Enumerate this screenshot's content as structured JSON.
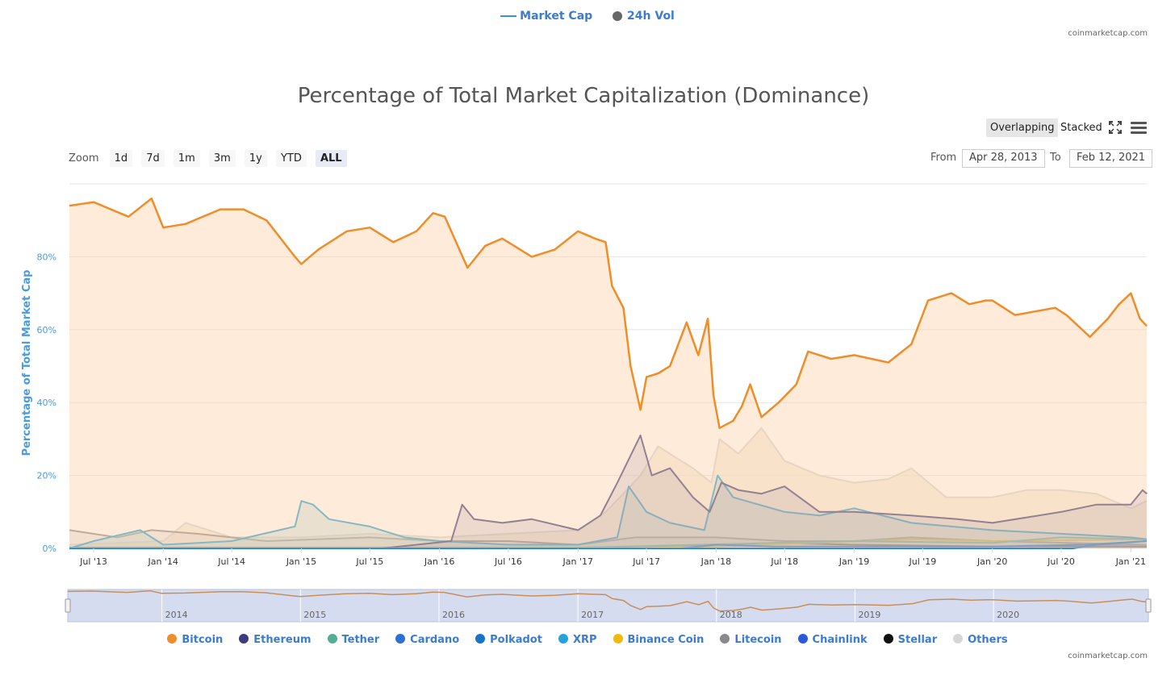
{
  "top_legend": {
    "market_cap": "Market Cap",
    "vol": "24h Vol"
  },
  "credit_top": "coinmarketcap.com",
  "credit_bottom": "coinmarketcap.com",
  "title": "Percentage of Total Market Capitalization (Dominance)",
  "view_buttons": {
    "overlapping": "Overlapping",
    "stacked": "Stacked"
  },
  "zoom": {
    "label": "Zoom",
    "buttons": [
      "1d",
      "7d",
      "1m",
      "3m",
      "1y",
      "YTD",
      "ALL"
    ],
    "selected": "ALL"
  },
  "range": {
    "from_label": "From",
    "from": "Apr 28, 2013",
    "to_label": "To",
    "to": "Feb 12, 2021"
  },
  "chart_data": {
    "type": "area",
    "title": "Percentage of Total Market Capitalization (Dominance)",
    "ylabel": "Percentage of Total Market Cap",
    "ylim": [
      0,
      100
    ],
    "yticks": [
      "0%",
      "20%",
      "40%",
      "60%",
      "80%"
    ],
    "x_start": "2013-04-28",
    "x_end": "2021-02-12",
    "xticks": [
      {
        "date": "2013-07-01",
        "label": "Jul '13"
      },
      {
        "date": "2014-01-01",
        "label": "Jan '14"
      },
      {
        "date": "2014-07-01",
        "label": "Jul '14"
      },
      {
        "date": "2015-01-01",
        "label": "Jan '15"
      },
      {
        "date": "2015-07-01",
        "label": "Jul '15"
      },
      {
        "date": "2016-01-01",
        "label": "Jan '16"
      },
      {
        "date": "2016-07-01",
        "label": "Jul '16"
      },
      {
        "date": "2017-01-01",
        "label": "Jan '17"
      },
      {
        "date": "2017-07-01",
        "label": "Jul '17"
      },
      {
        "date": "2018-01-01",
        "label": "Jan '18"
      },
      {
        "date": "2018-07-01",
        "label": "Jul '18"
      },
      {
        "date": "2019-01-01",
        "label": "Jan '19"
      },
      {
        "date": "2019-07-01",
        "label": "Jul '19"
      },
      {
        "date": "2020-01-01",
        "label": "Jan '20"
      },
      {
        "date": "2020-07-01",
        "label": "Jul '20"
      },
      {
        "date": "2021-01-01",
        "label": "Jan '21"
      }
    ],
    "navigator_years": [
      {
        "date": "2014-01-01",
        "label": "2014"
      },
      {
        "date": "2015-01-01",
        "label": "2015"
      },
      {
        "date": "2016-01-01",
        "label": "2016"
      },
      {
        "date": "2017-01-01",
        "label": "2017"
      },
      {
        "date": "2018-01-01",
        "label": "2018"
      },
      {
        "date": "2019-01-01",
        "label": "2019"
      },
      {
        "date": "2020-01-01",
        "label": "2020"
      }
    ],
    "series": [
      {
        "name": "Others",
        "color": "#d6d6d6",
        "fill": "rgba(235,225,205,0.55)",
        "points": [
          [
            "2013-04-28",
            1
          ],
          [
            "2014-01-01",
            2
          ],
          [
            "2014-03-01",
            7
          ],
          [
            "2014-07-01",
            3
          ],
          [
            "2015-01-01",
            3
          ],
          [
            "2015-07-01",
            4
          ],
          [
            "2016-01-01",
            3
          ],
          [
            "2016-07-01",
            4
          ],
          [
            "2017-01-01",
            5
          ],
          [
            "2017-03-15",
            10
          ],
          [
            "2017-05-01",
            15
          ],
          [
            "2017-06-15",
            20
          ],
          [
            "2017-08-01",
            28
          ],
          [
            "2017-09-15",
            25
          ],
          [
            "2017-11-01",
            22
          ],
          [
            "2017-12-20",
            18
          ],
          [
            "2018-01-10",
            30
          ],
          [
            "2018-03-01",
            26
          ],
          [
            "2018-05-01",
            33
          ],
          [
            "2018-07-01",
            24
          ],
          [
            "2018-10-01",
            20
          ],
          [
            "2019-01-01",
            18
          ],
          [
            "2019-04-01",
            19
          ],
          [
            "2019-06-01",
            22
          ],
          [
            "2019-09-01",
            14
          ],
          [
            "2020-01-01",
            14
          ],
          [
            "2020-04-01",
            16
          ],
          [
            "2020-07-01",
            16
          ],
          [
            "2020-10-01",
            15
          ],
          [
            "2021-01-01",
            11
          ],
          [
            "2021-02-12",
            13
          ]
        ]
      },
      {
        "name": "Stellar",
        "color": "#111111",
        "fill": "none",
        "points": [
          [
            "2013-04-28",
            0.2
          ],
          [
            "2017-01-01",
            0.2
          ],
          [
            "2017-06-01",
            0.5
          ],
          [
            "2018-01-01",
            1
          ],
          [
            "2018-06-01",
            1.5
          ],
          [
            "2019-01-01",
            1
          ],
          [
            "2020-01-01",
            0.5
          ],
          [
            "2021-02-12",
            0.5
          ]
        ]
      },
      {
        "name": "Chainlink",
        "color": "#2a5ada",
        "fill": "none",
        "points": [
          [
            "2013-04-28",
            0
          ],
          [
            "2019-06-01",
            0
          ],
          [
            "2020-01-01",
            0.3
          ],
          [
            "2020-08-01",
            1
          ],
          [
            "2021-02-12",
            1
          ]
        ]
      },
      {
        "name": "Litecoin",
        "color": "#8a8a8a",
        "fill": "rgba(200,200,200,0.35)",
        "points": [
          [
            "2013-04-28",
            5
          ],
          [
            "2013-09-01",
            3
          ],
          [
            "2013-12-01",
            5
          ],
          [
            "2014-04-01",
            4
          ],
          [
            "2014-10-01",
            2
          ],
          [
            "2015-07-01",
            3
          ],
          [
            "2016-01-01",
            2
          ],
          [
            "2016-07-01",
            2
          ],
          [
            "2017-01-01",
            1
          ],
          [
            "2017-06-01",
            3
          ],
          [
            "2018-01-01",
            3
          ],
          [
            "2018-07-01",
            2
          ],
          [
            "2019-01-01",
            2
          ],
          [
            "2019-06-01",
            3
          ],
          [
            "2020-01-01",
            2
          ],
          [
            "2021-02-12",
            1
          ]
        ]
      },
      {
        "name": "Binance Coin",
        "color": "#f0b90b",
        "fill": "none",
        "points": [
          [
            "2013-04-28",
            0
          ],
          [
            "2017-07-01",
            0
          ],
          [
            "2018-01-01",
            0.5
          ],
          [
            "2019-06-01",
            2.5
          ],
          [
            "2020-01-01",
            2
          ],
          [
            "2021-02-12",
            2.5
          ]
        ]
      },
      {
        "name": "Tether",
        "color": "#50af95",
        "fill": "none",
        "points": [
          [
            "2013-04-28",
            0
          ],
          [
            "2015-03-01",
            0
          ],
          [
            "2017-01-01",
            0.2
          ],
          [
            "2018-06-01",
            1.5
          ],
          [
            "2019-01-01",
            2
          ],
          [
            "2020-01-01",
            1.5
          ],
          [
            "2020-07-01",
            3
          ],
          [
            "2021-02-12",
            2.5
          ]
        ]
      },
      {
        "name": "XRP",
        "color": "#23a3d8",
        "fill": "rgba(150,200,210,0.35)",
        "points": [
          [
            "2013-04-28",
            0
          ],
          [
            "2013-07-01",
            2
          ],
          [
            "2013-11-01",
            5
          ],
          [
            "2014-01-01",
            1
          ],
          [
            "2014-07-01",
            2
          ],
          [
            "2014-12-15",
            6
          ],
          [
            "2015-01-01",
            13
          ],
          [
            "2015-02-01",
            12
          ],
          [
            "2015-03-15",
            8
          ],
          [
            "2015-07-01",
            6
          ],
          [
            "2015-10-01",
            3
          ],
          [
            "2016-01-01",
            2
          ],
          [
            "2016-07-01",
            1
          ],
          [
            "2017-01-01",
            1
          ],
          [
            "2017-04-15",
            3
          ],
          [
            "2017-05-15",
            17
          ],
          [
            "2017-07-01",
            10
          ],
          [
            "2017-09-01",
            7
          ],
          [
            "2017-12-01",
            5
          ],
          [
            "2018-01-05",
            20
          ],
          [
            "2018-02-15",
            14
          ],
          [
            "2018-07-01",
            10
          ],
          [
            "2018-10-01",
            9
          ],
          [
            "2019-01-01",
            11
          ],
          [
            "2019-06-01",
            7
          ],
          [
            "2020-01-01",
            5
          ],
          [
            "2020-07-01",
            4
          ],
          [
            "2021-01-01",
            3
          ],
          [
            "2021-02-12",
            2.5
          ]
        ]
      },
      {
        "name": "Ethereum",
        "color": "#3c3c7d",
        "fill": "rgba(90,80,140,0.18)",
        "points": [
          [
            "2013-04-28",
            0
          ],
          [
            "2015-08-01",
            0
          ],
          [
            "2016-02-01",
            2
          ],
          [
            "2016-03-01",
            12
          ],
          [
            "2016-04-01",
            8
          ],
          [
            "2016-06-15",
            7
          ],
          [
            "2016-09-01",
            8
          ],
          [
            "2017-01-01",
            5
          ],
          [
            "2017-03-01",
            9
          ],
          [
            "2017-04-15",
            18
          ],
          [
            "2017-06-15",
            31
          ],
          [
            "2017-07-15",
            20
          ],
          [
            "2017-09-01",
            22
          ],
          [
            "2017-11-01",
            14
          ],
          [
            "2017-12-15",
            10
          ],
          [
            "2018-01-15",
            18
          ],
          [
            "2018-03-01",
            16
          ],
          [
            "2018-05-01",
            15
          ],
          [
            "2018-07-01",
            17
          ],
          [
            "2018-10-01",
            10
          ],
          [
            "2019-01-01",
            10
          ],
          [
            "2019-06-01",
            9
          ],
          [
            "2019-10-01",
            8
          ],
          [
            "2020-01-01",
            7
          ],
          [
            "2020-07-01",
            10
          ],
          [
            "2020-10-01",
            12
          ],
          [
            "2021-01-01",
            12
          ],
          [
            "2021-02-01",
            16
          ],
          [
            "2021-02-12",
            15
          ]
        ]
      },
      {
        "name": "Cardano",
        "color": "#2c6fd6",
        "fill": "none",
        "points": [
          [
            "2013-04-28",
            0
          ],
          [
            "2017-10-01",
            0
          ],
          [
            "2018-01-01",
            1
          ],
          [
            "2018-06-01",
            0.5
          ],
          [
            "2020-01-01",
            0.5
          ],
          [
            "2020-09-01",
            1
          ],
          [
            "2021-02-12",
            2
          ]
        ]
      },
      {
        "name": "Polkadot",
        "color": "#1576c8",
        "fill": "none",
        "points": [
          [
            "2013-04-28",
            0
          ],
          [
            "2020-08-01",
            0
          ],
          [
            "2020-10-01",
            1
          ],
          [
            "2021-02-12",
            2
          ]
        ]
      },
      {
        "name": "Bitcoin",
        "color": "#ef8e29",
        "fill": "rgba(252,210,170,0.45)",
        "points": [
          [
            "2013-04-28",
            94
          ],
          [
            "2013-07-01",
            95
          ],
          [
            "2013-10-01",
            91
          ],
          [
            "2013-12-01",
            96
          ],
          [
            "2014-01-01",
            88
          ],
          [
            "2014-03-01",
            89
          ],
          [
            "2014-06-01",
            93
          ],
          [
            "2014-08-01",
            93
          ],
          [
            "2014-10-01",
            90
          ],
          [
            "2014-12-15",
            80
          ],
          [
            "2015-01-01",
            78
          ],
          [
            "2015-02-15",
            82
          ],
          [
            "2015-05-01",
            87
          ],
          [
            "2015-07-01",
            88
          ],
          [
            "2015-09-01",
            84
          ],
          [
            "2015-11-01",
            87
          ],
          [
            "2015-12-15",
            92
          ],
          [
            "2016-01-15",
            91
          ],
          [
            "2016-03-15",
            77
          ],
          [
            "2016-05-01",
            83
          ],
          [
            "2016-06-15",
            85
          ],
          [
            "2016-09-01",
            80
          ],
          [
            "2016-11-01",
            82
          ],
          [
            "2017-01-01",
            87
          ],
          [
            "2017-02-15",
            85
          ],
          [
            "2017-03-15",
            84
          ],
          [
            "2017-04-01",
            72
          ],
          [
            "2017-05-01",
            66
          ],
          [
            "2017-05-20",
            50
          ],
          [
            "2017-06-15",
            38
          ],
          [
            "2017-07-01",
            47
          ],
          [
            "2017-08-01",
            48
          ],
          [
            "2017-09-01",
            50
          ],
          [
            "2017-10-15",
            62
          ],
          [
            "2017-11-15",
            53
          ],
          [
            "2017-12-10",
            63
          ],
          [
            "2017-12-25",
            42
          ],
          [
            "2018-01-10",
            33
          ],
          [
            "2018-02-15",
            35
          ],
          [
            "2018-03-10",
            39
          ],
          [
            "2018-04-01",
            45
          ],
          [
            "2018-05-01",
            36
          ],
          [
            "2018-06-15",
            40
          ],
          [
            "2018-08-01",
            45
          ],
          [
            "2018-09-01",
            54
          ],
          [
            "2018-11-01",
            52
          ],
          [
            "2019-01-01",
            53
          ],
          [
            "2019-04-01",
            51
          ],
          [
            "2019-06-01",
            56
          ],
          [
            "2019-07-15",
            68
          ],
          [
            "2019-09-15",
            70
          ],
          [
            "2019-11-01",
            67
          ],
          [
            "2019-12-15",
            68
          ],
          [
            "2020-01-01",
            68
          ],
          [
            "2020-03-01",
            64
          ],
          [
            "2020-06-15",
            66
          ],
          [
            "2020-07-15",
            64
          ],
          [
            "2020-09-15",
            58
          ],
          [
            "2020-11-01",
            63
          ],
          [
            "2020-12-01",
            67
          ],
          [
            "2021-01-01",
            70
          ],
          [
            "2021-01-25",
            63
          ],
          [
            "2021-02-12",
            61
          ]
        ]
      }
    ],
    "legend": [
      "Bitcoin",
      "Ethereum",
      "Tether",
      "Cardano",
      "Polkadot",
      "XRP",
      "Binance Coin",
      "Litecoin",
      "Chainlink",
      "Stellar",
      "Others"
    ],
    "legend_colors": {
      "Bitcoin": "#ef8e29",
      "Ethereum": "#3c3c7d",
      "Tether": "#50af95",
      "Cardano": "#2c6fd6",
      "Polkadot": "#1576c8",
      "XRP": "#23a3d8",
      "Binance Coin": "#f0b90b",
      "Litecoin": "#8a8a8a",
      "Chainlink": "#2a5ada",
      "Stellar": "#111111",
      "Others": "#d6d6d6"
    }
  }
}
